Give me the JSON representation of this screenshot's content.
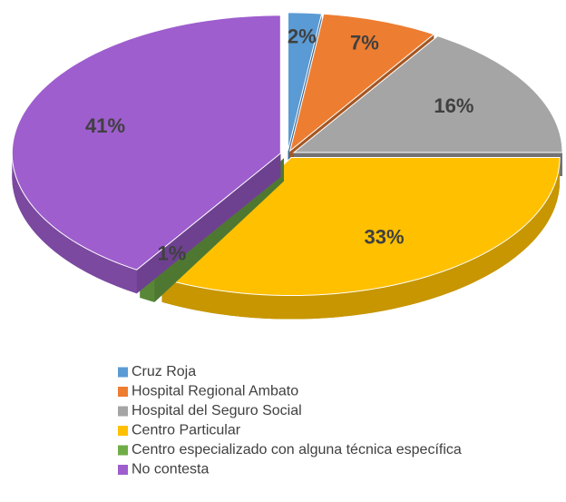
{
  "chart_data": {
    "type": "pie",
    "categories": [
      "Cruz Roja",
      "Hospital Regional Ambato",
      "Hospital del Seguro Social",
      "Centro Particular",
      "Centro especializado con alguna técnica específica",
      "No contesta"
    ],
    "values": [
      2,
      7,
      16,
      33,
      1,
      41
    ],
    "value_labels": [
      "2%",
      "7%",
      "16%",
      "33%",
      "1%",
      "41%"
    ],
    "colors": [
      "#5B9BD5",
      "#ED7D31",
      "#A5A5A5",
      "#FFC000",
      "#70AD47",
      "#9E5ECE"
    ],
    "legend": "bottom"
  }
}
